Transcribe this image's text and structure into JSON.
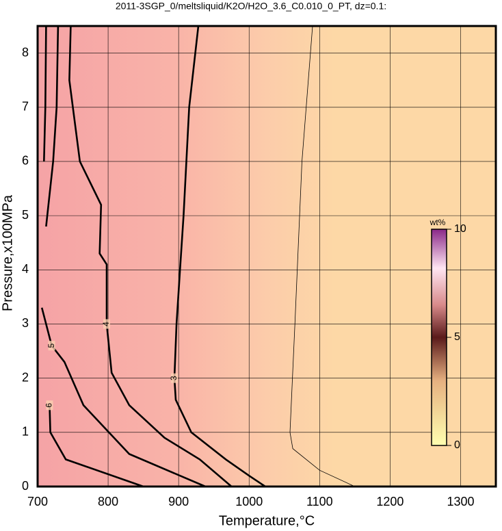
{
  "chart_data": {
    "type": "contour",
    "title": "2011-3SGP_0/meltsliquid/K2O/H2O_3.6_C0.010_0_PT, dz=0.1:",
    "xlabel": "Temperature,°C",
    "ylabel": "Pressure,x100MPa",
    "xlim": [
      700,
      1350
    ],
    "ylim": [
      0,
      8.5
    ],
    "xticks": [
      700,
      800,
      900,
      1000,
      1100,
      1200,
      1300
    ],
    "yticks": [
      0,
      1,
      2,
      3,
      4,
      5,
      6,
      7,
      8
    ],
    "grid": true,
    "contours": [
      {
        "level": 3,
        "bold": true,
        "x": [
          928,
          915,
          907,
          902,
          897,
          894,
          896,
          918,
          967,
          1000,
          1023
        ],
        "y": [
          8.5,
          7,
          5,
          4,
          3,
          2,
          1.6,
          1,
          0.5,
          0.2,
          0
        ]
      },
      {
        "level": 4,
        "bold": true,
        "x": [
          747,
          745,
          760,
          790,
          788,
          798,
          798,
          805,
          830,
          880,
          930,
          975
        ],
        "y": [
          8.5,
          7.5,
          6,
          5.2,
          4.3,
          4.1,
          3,
          2.1,
          1.5,
          0.9,
          0.5,
          0
        ]
      },
      {
        "level": 5,
        "bold": true,
        "x": [
          729,
          727,
          722,
          712,
          null,
          706,
          720,
          738,
          765,
          830,
          938
        ],
        "y": [
          8.5,
          7,
          6,
          4.8,
          null,
          3.3,
          2.6,
          2.3,
          1.5,
          0.6,
          0
        ]
      },
      {
        "level": 6,
        "bold": true,
        "x": [
          712,
          711,
          709,
          null,
          717,
          718,
          740,
          850
        ],
        "y": [
          8.5,
          7,
          6,
          null,
          1.5,
          1,
          0.5,
          0
        ]
      },
      {
        "level": 2.5,
        "bold": false,
        "x": [
          1090,
          1075,
          1065,
          1058,
          1062,
          1100,
          1150
        ],
        "y": [
          8.5,
          6,
          3,
          1,
          0.7,
          0.3,
          0
        ]
      }
    ],
    "colorbar": {
      "label": "wt%",
      "lim": [
        0,
        10
      ],
      "ticks": [
        0,
        5,
        10
      ]
    }
  }
}
